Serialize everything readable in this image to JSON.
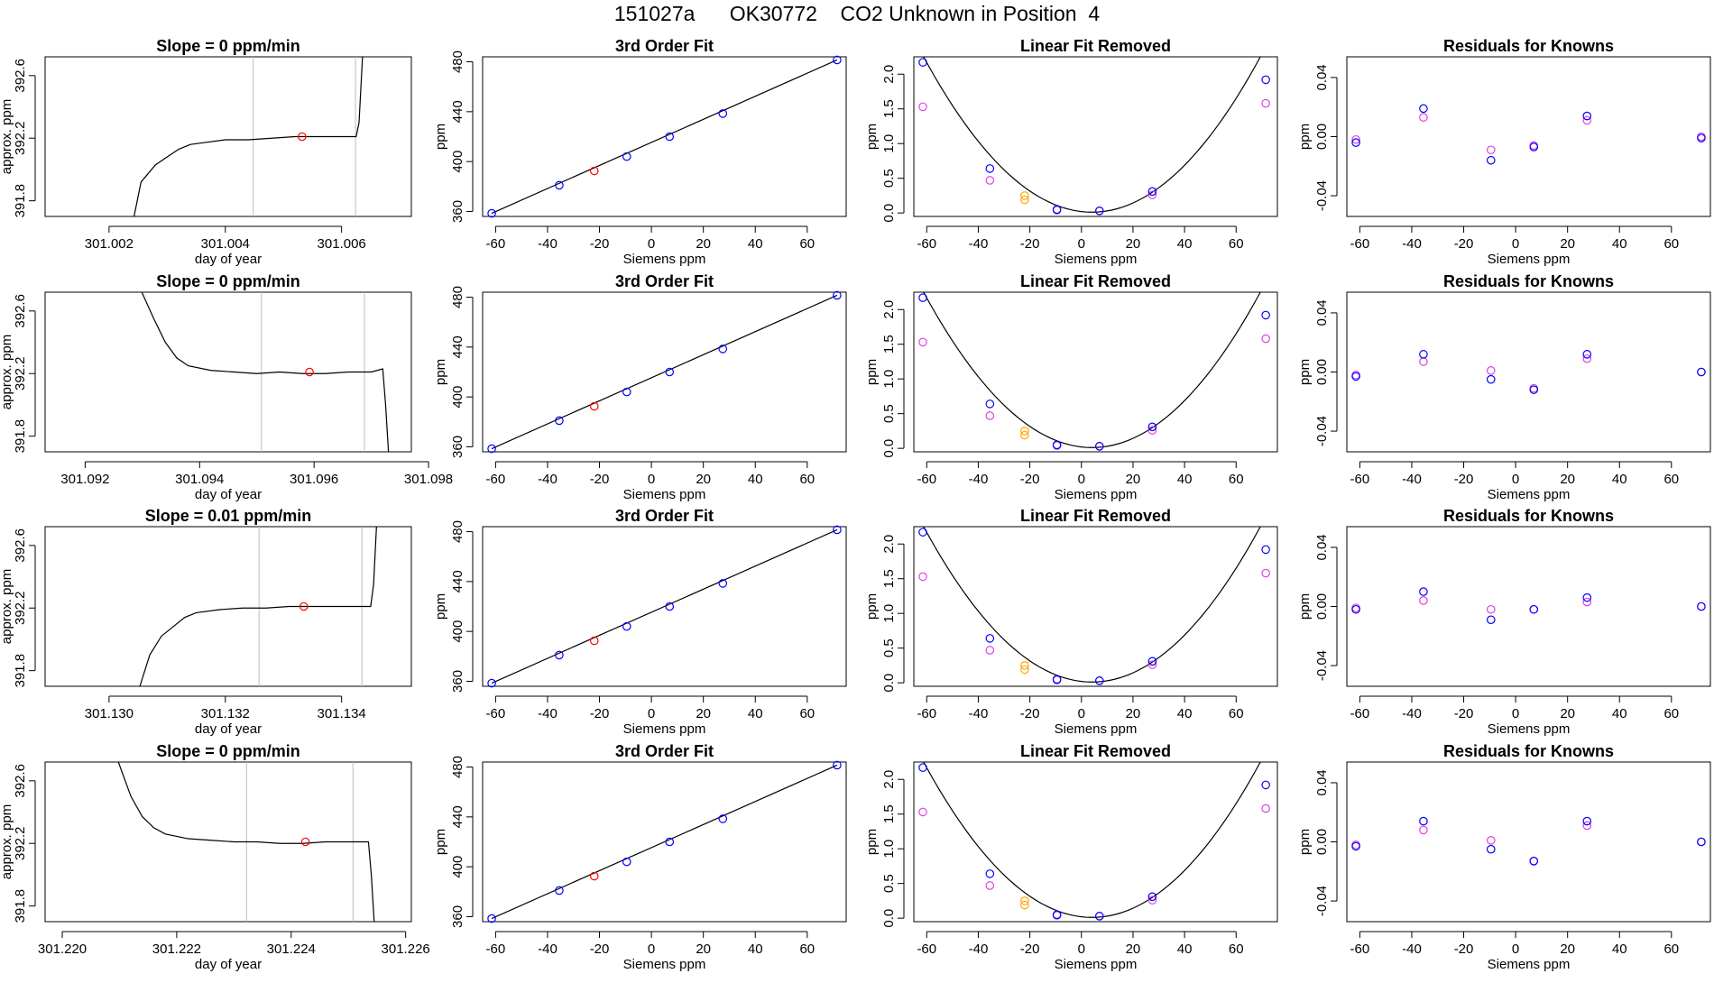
{
  "suptitle": "151027a      OK30772    CO2 Unknown in Position  4",
  "colors": {
    "blue": "#0000ff",
    "magenta": "#e040e0",
    "orange": "#ffa500",
    "red": "#ff0000",
    "gray": "#bebebe",
    "black": "#000000"
  },
  "chart_data": [
    {
      "type": "line",
      "row": 1,
      "title": "Slope =  0  ppm/min",
      "xlabel": "day of year",
      "ylabel": "approx. ppm",
      "xlim": [
        301.0009,
        301.0072
      ],
      "ylim": [
        391.7,
        392.72
      ],
      "xticks": [
        301.002,
        301.004,
        301.006
      ],
      "yticks": [
        391.8,
        392.2,
        392.6
      ],
      "series": [
        {
          "x": [
            301.00243,
            301.00255,
            301.0028,
            301.003,
            301.0032,
            301.0034,
            301.0036,
            301.004,
            301.0044,
            301.0048,
            301.0052,
            301.0056,
            301.006,
            301.00625,
            301.0063,
            301.00636
          ],
          "y": [
            391.7,
            391.92,
            392.03,
            392.08,
            392.13,
            392.16,
            392.17,
            392.19,
            392.19,
            392.2,
            392.21,
            392.21,
            392.21,
            392.21,
            392.3,
            392.72
          ]
        }
      ],
      "vlines": [
        301.00448,
        301.00624
      ],
      "point": {
        "x": 301.00532,
        "y": 392.21
      }
    },
    {
      "type": "line",
      "row": 2,
      "title": "Slope =  0  ppm/min",
      "xlabel": "day of year",
      "ylabel": "approx. ppm",
      "xlim": [
        301.0913,
        301.0977
      ],
      "ylim": [
        391.7,
        392.72
      ],
      "xticks": [
        301.092,
        301.094,
        301.096,
        301.098
      ],
      "yticks": [
        391.8,
        392.2,
        392.6
      ],
      "series": [
        {
          "x": [
            301.09299,
            301.0932,
            301.0934,
            301.0936,
            301.0938,
            301.0942,
            301.0946,
            301.095,
            301.0954,
            301.0958,
            301.0962,
            301.0966,
            301.097,
            301.0972,
            301.09725,
            301.0973
          ],
          "y": [
            392.72,
            392.55,
            392.4,
            392.3,
            392.25,
            392.22,
            392.21,
            392.2,
            392.21,
            392.2,
            392.2,
            392.21,
            392.21,
            392.23,
            392.0,
            391.7
          ]
        }
      ],
      "vlines": [
        301.09508,
        301.09688
      ],
      "point": {
        "x": 301.09592,
        "y": 392.21
      }
    },
    {
      "type": "line",
      "row": 3,
      "title": "Slope =  0.01  ppm/min",
      "xlabel": "day of year",
      "ylabel": "approx. ppm",
      "xlim": [
        301.1289,
        301.1352
      ],
      "ylim": [
        391.7,
        392.72
      ],
      "xticks": [
        301.13,
        301.132,
        301.134
      ],
      "yticks": [
        391.8,
        392.2,
        392.6
      ],
      "series": [
        {
          "x": [
            301.13053,
            301.1307,
            301.1309,
            301.1311,
            301.1313,
            301.1315,
            301.1319,
            301.1323,
            301.1327,
            301.1331,
            301.1335,
            301.1339,
            301.1343,
            301.1345,
            301.13455,
            301.1346
          ],
          "y": [
            391.7,
            391.9,
            392.02,
            392.08,
            392.14,
            392.17,
            392.19,
            392.2,
            392.2,
            392.21,
            392.21,
            392.21,
            392.21,
            392.21,
            392.35,
            392.72
          ]
        }
      ],
      "vlines": [
        301.13258,
        301.13435
      ],
      "point": {
        "x": 301.13335,
        "y": 392.21
      }
    },
    {
      "type": "line",
      "row": 4,
      "title": "Slope =  0  ppm/min",
      "xlabel": "day of year",
      "ylabel": "approx. ppm",
      "xlim": [
        301.2197,
        301.2261
      ],
      "ylim": [
        391.7,
        392.72
      ],
      "xticks": [
        301.22,
        301.222,
        301.224,
        301.226
      ],
      "yticks": [
        391.8,
        392.2,
        392.6
      ],
      "series": [
        {
          "x": [
            301.22098,
            301.2212,
            301.2214,
            301.2216,
            301.2218,
            301.2222,
            301.2226,
            301.223,
            301.2234,
            301.2238,
            301.2242,
            301.2246,
            301.225,
            301.22535,
            301.2254,
            301.22545
          ],
          "y": [
            392.72,
            392.5,
            392.37,
            392.3,
            392.26,
            392.23,
            392.22,
            392.21,
            392.21,
            392.2,
            392.2,
            392.21,
            392.21,
            392.21,
            392.0,
            391.7
          ]
        }
      ],
      "vlines": [
        301.22322,
        301.22508
      ],
      "point": {
        "x": 301.22425,
        "y": 392.21
      }
    },
    {
      "type": "scatter",
      "row": 1,
      "title": "3rd Order Fit",
      "xlabel": "Siemens ppm",
      "ylabel": "ppm",
      "xlim": [
        -65,
        75
      ],
      "ylim": [
        356,
        484
      ],
      "xticks": [
        -60,
        -40,
        -20,
        0,
        20,
        40,
        60
      ],
      "yticks": [
        360,
        400,
        440,
        480
      ],
      "line": {
        "x": [
          -61.5,
          71.5
        ],
        "y": [
          358.5,
          481.5
        ]
      },
      "points_blue": {
        "x": [
          -61.5,
          -35.5,
          -9.5,
          7,
          27.5,
          71.5
        ],
        "y": [
          358.5,
          381,
          404,
          420,
          438.5,
          481.5
        ]
      },
      "points_red": {
        "x": [
          -22
        ],
        "y": [
          392.5
        ]
      }
    },
    {
      "type": "scatter",
      "row": 2,
      "title": "3rd Order Fit",
      "xlabel": "Siemens ppm",
      "ylabel": "ppm",
      "xlim": [
        -65,
        75
      ],
      "ylim": [
        356,
        484
      ],
      "xticks": [
        -60,
        -40,
        -20,
        0,
        20,
        40,
        60
      ],
      "yticks": [
        360,
        400,
        440,
        480
      ],
      "line": {
        "x": [
          -61.5,
          71.5
        ],
        "y": [
          358.5,
          481.5
        ]
      },
      "points_blue": {
        "x": [
          -61.5,
          -35.5,
          -9.5,
          7,
          27.5,
          71.5
        ],
        "y": [
          358.5,
          381,
          404,
          420,
          438.5,
          481.5
        ]
      },
      "points_red": {
        "x": [
          -22
        ],
        "y": [
          392.5
        ]
      }
    },
    {
      "type": "scatter",
      "row": 3,
      "title": "3rd Order Fit",
      "xlabel": "Siemens ppm",
      "ylabel": "ppm",
      "xlim": [
        -65,
        75
      ],
      "ylim": [
        356,
        484
      ],
      "xticks": [
        -60,
        -40,
        -20,
        0,
        20,
        40,
        60
      ],
      "yticks": [
        360,
        400,
        440,
        480
      ],
      "line": {
        "x": [
          -61.5,
          71.5
        ],
        "y": [
          358.5,
          481.5
        ]
      },
      "points_blue": {
        "x": [
          -61.5,
          -35.5,
          -9.5,
          7,
          27.5,
          71.5
        ],
        "y": [
          358.5,
          381,
          404,
          420,
          438.5,
          481.5
        ]
      },
      "points_red": {
        "x": [
          -22
        ],
        "y": [
          392.5
        ]
      }
    },
    {
      "type": "scatter",
      "row": 4,
      "title": "3rd Order Fit",
      "xlabel": "Siemens ppm",
      "ylabel": "ppm",
      "xlim": [
        -65,
        75
      ],
      "ylim": [
        356,
        484
      ],
      "xticks": [
        -60,
        -40,
        -20,
        0,
        20,
        40,
        60
      ],
      "yticks": [
        360,
        400,
        440,
        480
      ],
      "line": {
        "x": [
          -61.5,
          71.5
        ],
        "y": [
          358.5,
          481.5
        ]
      },
      "points_blue": {
        "x": [
          -61.5,
          -35.5,
          -9.5,
          7,
          27.5,
          71.5
        ],
        "y": [
          358.5,
          381,
          404,
          420,
          438.5,
          481.5
        ]
      },
      "points_red": {
        "x": [
          -22
        ],
        "y": [
          392.5
        ]
      }
    },
    {
      "type": "scatter",
      "row": 1,
      "title": "Linear Fit Removed",
      "xlabel": "Siemens ppm",
      "ylabel": "ppm",
      "xlim": [
        -65,
        76
      ],
      "ylim": [
        -0.05,
        2.25
      ],
      "xticks": [
        -60,
        -40,
        -20,
        0,
        20,
        40,
        60
      ],
      "yticks": [
        0.0,
        0.5,
        1.0,
        1.5,
        2.0
      ],
      "curve": {
        "x_range": [
          -61.5,
          71.5
        ],
        "a": 0.000525,
        "b": -0.0043,
        "c": 0.02
      },
      "points_blue": {
        "x": [
          -61.5,
          -35.5,
          -9.5,
          7,
          27.5,
          71.5
        ],
        "y": [
          2.17,
          0.64,
          0.05,
          0.03,
          0.31,
          1.92
        ]
      },
      "points_magenta": {
        "x": [
          -61.5,
          -35.5,
          -9.5,
          7,
          27.5,
          71.5
        ],
        "y": [
          1.53,
          0.47,
          0.04,
          0.03,
          0.26,
          1.58
        ]
      },
      "points_orange": {
        "x": [
          -22,
          -22
        ],
        "y": [
          0.25,
          0.19
        ]
      }
    },
    {
      "type": "scatter",
      "row": 2,
      "title": "Linear Fit Removed",
      "xlabel": "Siemens ppm",
      "ylabel": "ppm",
      "xlim": [
        -65,
        76
      ],
      "ylim": [
        -0.05,
        2.25
      ],
      "xticks": [
        -60,
        -40,
        -20,
        0,
        20,
        40,
        60
      ],
      "yticks": [
        0.0,
        0.5,
        1.0,
        1.5,
        2.0
      ],
      "curve": {
        "x_range": [
          -61.5,
          71.5
        ],
        "a": 0.000525,
        "b": -0.0043,
        "c": 0.02
      },
      "points_blue": {
        "x": [
          -61.5,
          -35.5,
          -9.5,
          7,
          27.5,
          71.5
        ],
        "y": [
          2.17,
          0.64,
          0.05,
          0.03,
          0.31,
          1.92
        ]
      },
      "points_magenta": {
        "x": [
          -61.5,
          -35.5,
          -9.5,
          7,
          27.5,
          71.5
        ],
        "y": [
          1.53,
          0.47,
          0.04,
          0.03,
          0.26,
          1.58
        ]
      },
      "points_orange": {
        "x": [
          -22,
          -22
        ],
        "y": [
          0.25,
          0.19
        ]
      }
    },
    {
      "type": "scatter",
      "row": 3,
      "title": "Linear Fit Removed",
      "xlabel": "Siemens ppm",
      "ylabel": "ppm",
      "xlim": [
        -65,
        76
      ],
      "ylim": [
        -0.05,
        2.25
      ],
      "xticks": [
        -60,
        -40,
        -20,
        0,
        20,
        40,
        60
      ],
      "yticks": [
        0.0,
        0.5,
        1.0,
        1.5,
        2.0
      ],
      "curve": {
        "x_range": [
          -61.5,
          71.5
        ],
        "a": 0.000525,
        "b": -0.0043,
        "c": 0.02
      },
      "points_blue": {
        "x": [
          -61.5,
          -35.5,
          -9.5,
          7,
          27.5,
          71.5
        ],
        "y": [
          2.17,
          0.64,
          0.05,
          0.03,
          0.31,
          1.92
        ]
      },
      "points_magenta": {
        "x": [
          -61.5,
          -35.5,
          -9.5,
          7,
          27.5,
          71.5
        ],
        "y": [
          1.53,
          0.47,
          0.04,
          0.03,
          0.26,
          1.58
        ]
      },
      "points_orange": {
        "x": [
          -22,
          -22
        ],
        "y": [
          0.25,
          0.19
        ]
      }
    },
    {
      "type": "scatter",
      "row": 4,
      "title": "Linear Fit Removed",
      "xlabel": "Siemens ppm",
      "ylabel": "ppm",
      "xlim": [
        -65,
        76
      ],
      "ylim": [
        -0.05,
        2.25
      ],
      "xticks": [
        -60,
        -40,
        -20,
        0,
        20,
        40,
        60
      ],
      "yticks": [
        0.0,
        0.5,
        1.0,
        1.5,
        2.0
      ],
      "curve": {
        "x_range": [
          -61.5,
          71.5
        ],
        "a": 0.000525,
        "b": -0.0043,
        "c": 0.02
      },
      "points_blue": {
        "x": [
          -61.5,
          -35.5,
          -9.5,
          7,
          27.5,
          71.5
        ],
        "y": [
          2.17,
          0.64,
          0.05,
          0.03,
          0.31,
          1.92
        ]
      },
      "points_magenta": {
        "x": [
          -61.5,
          -35.5,
          -9.5,
          7,
          27.5,
          71.5
        ],
        "y": [
          1.53,
          0.47,
          0.04,
          0.03,
          0.26,
          1.58
        ]
      },
      "points_orange": {
        "x": [
          -22,
          -22
        ],
        "y": [
          0.25,
          0.19
        ]
      }
    },
    {
      "type": "scatter",
      "row": 1,
      "title": "Residuals for Knowns",
      "xlabel": "Siemens ppm",
      "ylabel": "ppm",
      "xlim": [
        -65,
        75
      ],
      "ylim": [
        -0.054,
        0.054
      ],
      "xticks": [
        -60,
        -40,
        -20,
        0,
        20,
        40,
        60
      ],
      "yticks": [
        -0.04,
        0.0,
        0.04
      ],
      "points_blue": {
        "x": [
          -61.5,
          -35.5,
          -9.5,
          7,
          27.5,
          71.5
        ],
        "y": [
          -0.004,
          0.019,
          -0.016,
          -0.007,
          0.014,
          -0.001
        ]
      },
      "points_magenta": {
        "x": [
          -61.5,
          -35.5,
          -9.5,
          7,
          27.5,
          71.5
        ],
        "y": [
          -0.002,
          0.013,
          -0.009,
          -0.006,
          0.011,
          0.0
        ]
      }
    },
    {
      "type": "scatter",
      "row": 2,
      "title": "Residuals for Knowns",
      "xlabel": "Siemens ppm",
      "ylabel": "ppm",
      "xlim": [
        -65,
        75
      ],
      "ylim": [
        -0.054,
        0.054
      ],
      "xticks": [
        -60,
        -40,
        -20,
        0,
        20,
        40,
        60
      ],
      "yticks": [
        -0.04,
        0.0,
        0.04
      ],
      "points_blue": {
        "x": [
          -61.5,
          -35.5,
          -9.5,
          7,
          27.5,
          71.5
        ],
        "y": [
          -0.003,
          0.012,
          -0.005,
          -0.012,
          0.012,
          0.0
        ]
      },
      "points_magenta": {
        "x": [
          -61.5,
          -35.5,
          -9.5,
          7,
          27.5,
          71.5
        ],
        "y": [
          -0.002,
          0.007,
          0.001,
          -0.011,
          0.009,
          0.0
        ]
      }
    },
    {
      "type": "scatter",
      "row": 3,
      "title": "Residuals for Knowns",
      "xlabel": "Siemens ppm",
      "ylabel": "ppm",
      "xlim": [
        -65,
        75
      ],
      "ylim": [
        -0.054,
        0.054
      ],
      "xticks": [
        -60,
        -40,
        -20,
        0,
        20,
        40,
        60
      ],
      "yticks": [
        -0.04,
        0.0,
        0.04
      ],
      "points_blue": {
        "x": [
          -61.5,
          -35.5,
          -9.5,
          7,
          27.5,
          71.5
        ],
        "y": [
          -0.002,
          0.01,
          -0.009,
          -0.002,
          0.006,
          0.0
        ]
      },
      "points_magenta": {
        "x": [
          -61.5,
          -35.5,
          -9.5,
          7,
          27.5,
          71.5
        ],
        "y": [
          -0.001,
          0.004,
          -0.002,
          -0.002,
          0.003,
          0.0
        ]
      }
    },
    {
      "type": "scatter",
      "row": 4,
      "title": "Residuals for Knowns",
      "xlabel": "Siemens ppm",
      "ylabel": "ppm",
      "xlim": [
        -65,
        75
      ],
      "ylim": [
        -0.054,
        0.054
      ],
      "xticks": [
        -60,
        -40,
        -20,
        0,
        20,
        40,
        60
      ],
      "yticks": [
        -0.04,
        0.0,
        0.04
      ],
      "points_blue": {
        "x": [
          -61.5,
          -35.5,
          -9.5,
          7,
          27.5,
          71.5
        ],
        "y": [
          -0.003,
          0.014,
          -0.005,
          -0.013,
          0.014,
          0.0
        ]
      },
      "points_magenta": {
        "x": [
          -61.5,
          -35.5,
          -9.5,
          7,
          27.5,
          71.5
        ],
        "y": [
          -0.002,
          0.008,
          0.001,
          -0.013,
          0.011,
          0.0
        ]
      }
    }
  ]
}
